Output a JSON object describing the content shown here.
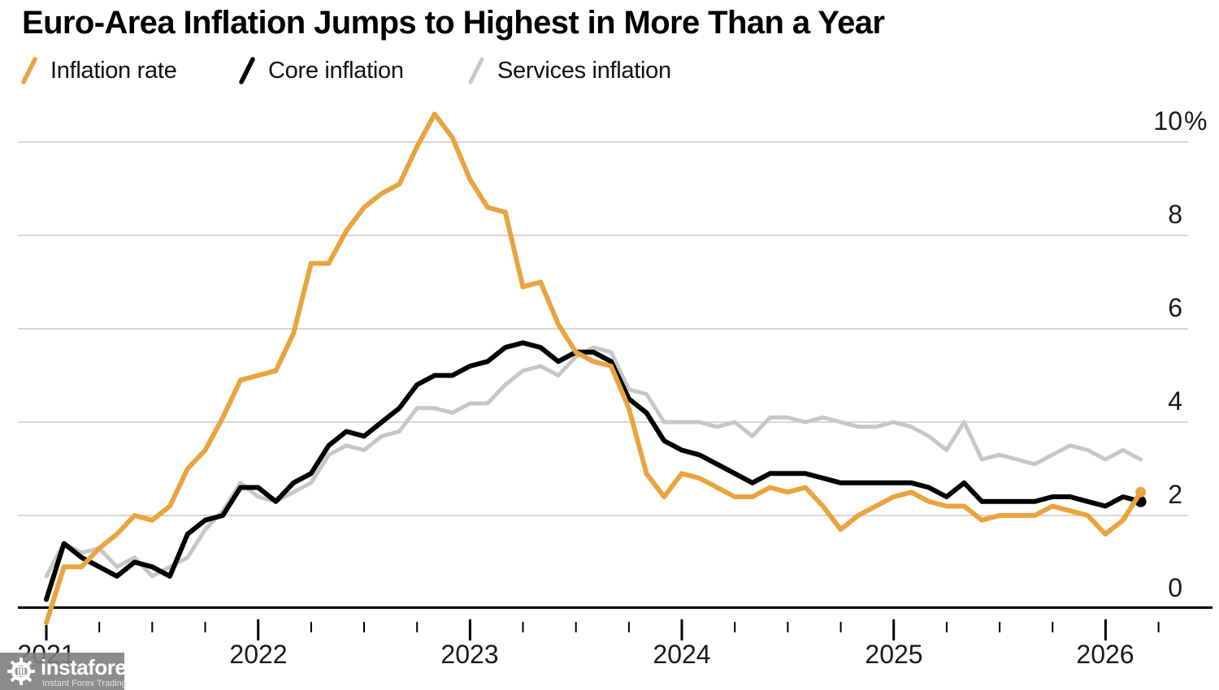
{
  "title": "Euro-Area Inflation Jumps to Highest in More Than a Year",
  "legend": [
    {
      "label": "Inflation rate",
      "color": "#E9A43F"
    },
    {
      "label": "Core inflation",
      "color": "#000000"
    },
    {
      "label": "Services inflation",
      "color": "#C7C7C7"
    }
  ],
  "watermark": {
    "brand": "instaforex",
    "tagline": "Instant Forex Trading"
  },
  "chart_data": {
    "type": "line",
    "title": "Euro-Area Inflation Jumps to Highest in More Than a Year",
    "x_start": "2020-12",
    "x_end": "2026-02",
    "x_frequency": "monthly",
    "x_tick_years": [
      "2021",
      "2022",
      "2023",
      "2024",
      "2025",
      "2026"
    ],
    "y_axis": [
      {
        "label": "10",
        "suffix": "%",
        "value": 10
      },
      {
        "label": "8",
        "value": 8
      },
      {
        "label": "6",
        "value": 6
      },
      {
        "label": "4",
        "value": 4
      },
      {
        "label": "2",
        "value": 2
      },
      {
        "label": "0",
        "value": 0
      }
    ],
    "ylim": [
      -0.5,
      10.8
    ],
    "unit": "percent",
    "grid": "horizontal",
    "legend_position": "top-left",
    "series": [
      {
        "id": "services-inflation",
        "name": "Services inflation",
        "color": "#C7C7C7",
        "stroke_width": 5,
        "end_dot": false,
        "values": [
          0.7,
          1.4,
          1.2,
          1.3,
          0.9,
          1.1,
          0.7,
          0.9,
          1.1,
          1.7,
          2.1,
          2.7,
          2.4,
          2.3,
          2.5,
          2.7,
          3.3,
          3.5,
          3.4,
          3.7,
          3.8,
          4.3,
          4.3,
          4.2,
          4.4,
          4.4,
          4.8,
          5.1,
          5.2,
          5.0,
          5.4,
          5.6,
          5.5,
          4.7,
          4.6,
          4.0,
          4.0,
          4.0,
          3.9,
          4.0,
          3.7,
          4.1,
          4.1,
          4.0,
          4.1,
          4.0,
          3.9,
          3.9,
          4.0,
          3.9,
          3.7,
          3.4,
          4.0,
          3.2,
          3.3,
          3.2,
          3.1,
          3.3,
          3.5,
          3.4,
          3.2,
          3.4,
          3.2
        ]
      },
      {
        "id": "core-inflation",
        "name": "Core inflation",
        "color": "#000000",
        "stroke_width": 6,
        "end_dot": true,
        "dot_r": 7,
        "values": [
          0.2,
          1.4,
          1.1,
          0.9,
          0.7,
          1.0,
          0.9,
          0.7,
          1.6,
          1.9,
          2.0,
          2.6,
          2.6,
          2.3,
          2.7,
          2.9,
          3.5,
          3.8,
          3.7,
          4.0,
          4.3,
          4.8,
          5.0,
          5.0,
          5.2,
          5.3,
          5.6,
          5.7,
          5.6,
          5.3,
          5.5,
          5.5,
          5.3,
          4.5,
          4.2,
          3.6,
          3.4,
          3.3,
          3.1,
          2.9,
          2.7,
          2.9,
          2.9,
          2.9,
          2.8,
          2.7,
          2.7,
          2.7,
          2.7,
          2.7,
          2.6,
          2.4,
          2.7,
          2.3,
          2.3,
          2.3,
          2.3,
          2.4,
          2.4,
          2.3,
          2.2,
          2.4,
          2.3
        ]
      },
      {
        "id": "inflation-rate",
        "name": "Inflation rate",
        "color": "#E9A43F",
        "stroke_width": 6,
        "end_dot": true,
        "dot_r": 6.5,
        "values": [
          -0.3,
          0.9,
          0.9,
          1.3,
          1.6,
          2.0,
          1.9,
          2.2,
          3.0,
          3.4,
          4.1,
          4.9,
          5.0,
          5.1,
          5.9,
          7.4,
          7.4,
          8.1,
          8.6,
          8.9,
          9.1,
          9.9,
          10.6,
          10.1,
          9.2,
          8.6,
          8.5,
          6.9,
          7.0,
          6.1,
          5.5,
          5.3,
          5.2,
          4.3,
          2.9,
          2.4,
          2.9,
          2.8,
          2.6,
          2.4,
          2.4,
          2.6,
          2.5,
          2.6,
          2.2,
          1.7,
          2.0,
          2.2,
          2.4,
          2.5,
          2.3,
          2.2,
          2.2,
          1.9,
          2.0,
          2.0,
          2.0,
          2.2,
          2.1,
          2.0,
          1.6,
          1.9,
          2.5
        ]
      }
    ]
  }
}
